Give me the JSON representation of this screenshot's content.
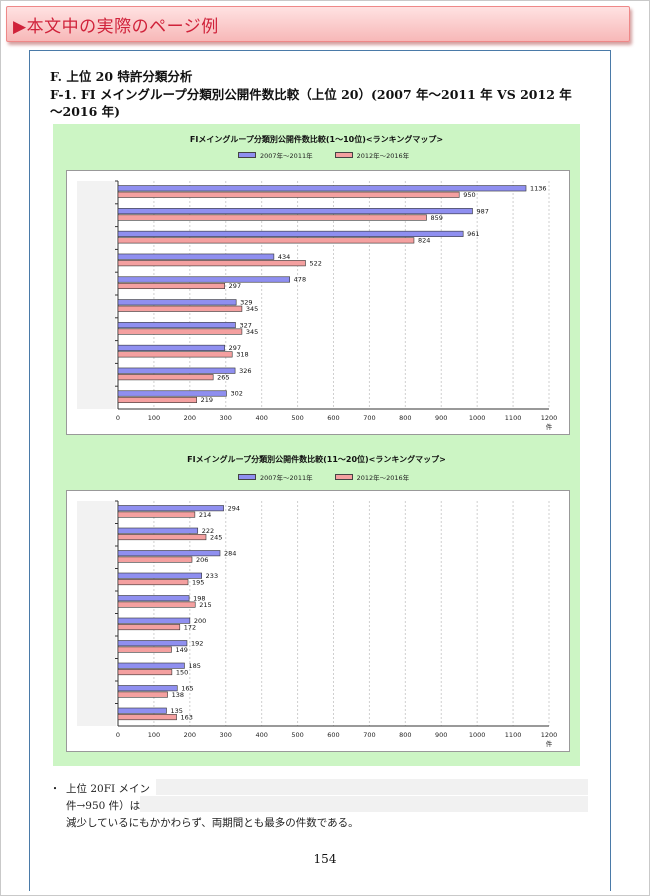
{
  "banner": {
    "title": "▶本文中の実際のページ例"
  },
  "section": {
    "heading": "F.  上位 20 特許分類分析",
    "subheading_line1": "F-1.  FI メイングループ分類別公開件数比較（上位 20）(2007 年～2011 年  VS 2012 年",
    "subheading_line2": "～2016 年)"
  },
  "colors": {
    "series1": "#8f8ff0",
    "series2": "#f4a0a0",
    "panel": "#ccf5c4",
    "banner_text": "#d0223a"
  },
  "legend": {
    "series1": "2007年～2011年",
    "series2": "2012年～2016年"
  },
  "chart_data": [
    {
      "type": "bar",
      "orientation": "horizontal",
      "title": "FIメイングループ分類別公開件数比較(1～10位)<ランキングマップ>",
      "series": [
        {
          "name": "2007年～2011年",
          "values": [
            1136,
            987,
            961,
            434,
            478,
            329,
            327,
            297,
            326,
            302
          ]
        },
        {
          "name": "2012年～2016年",
          "values": [
            950,
            859,
            824,
            522,
            297,
            345,
            345,
            318,
            265,
            219
          ]
        }
      ],
      "xlim": [
        0,
        1200
      ],
      "xticks": [
        "0",
        "100",
        "200",
        "300",
        "400",
        "500",
        "600",
        "700",
        "800",
        "900",
        "1000",
        "1100",
        "1200"
      ],
      "unit": "件",
      "grid": true,
      "legend_position": "top"
    },
    {
      "type": "bar",
      "orientation": "horizontal",
      "title": "FIメイングループ分類別公開件数比較(11～20位)<ランキングマップ>",
      "series": [
        {
          "name": "2007年～2011年",
          "values": [
            294,
            222,
            284,
            233,
            198,
            200,
            192,
            185,
            165,
            135
          ]
        },
        {
          "name": "2012年～2016年",
          "values": [
            214,
            245,
            206,
            195,
            215,
            172,
            149,
            150,
            138,
            163
          ]
        }
      ],
      "xlim": [
        0,
        1200
      ],
      "xticks": [
        "0",
        "100",
        "200",
        "300",
        "400",
        "500",
        "600",
        "700",
        "800",
        "900",
        "1000",
        "1100",
        "1200"
      ],
      "unit": "件",
      "grid": true,
      "legend_position": "top"
    }
  ],
  "paragraph": {
    "bullet": "・",
    "line1": "上位 20FI メイン",
    "line2": "件→950 件）は",
    "line3": "減少しているにもかかわらず、両期間とも最多の件数である。"
  },
  "page_number": "154"
}
